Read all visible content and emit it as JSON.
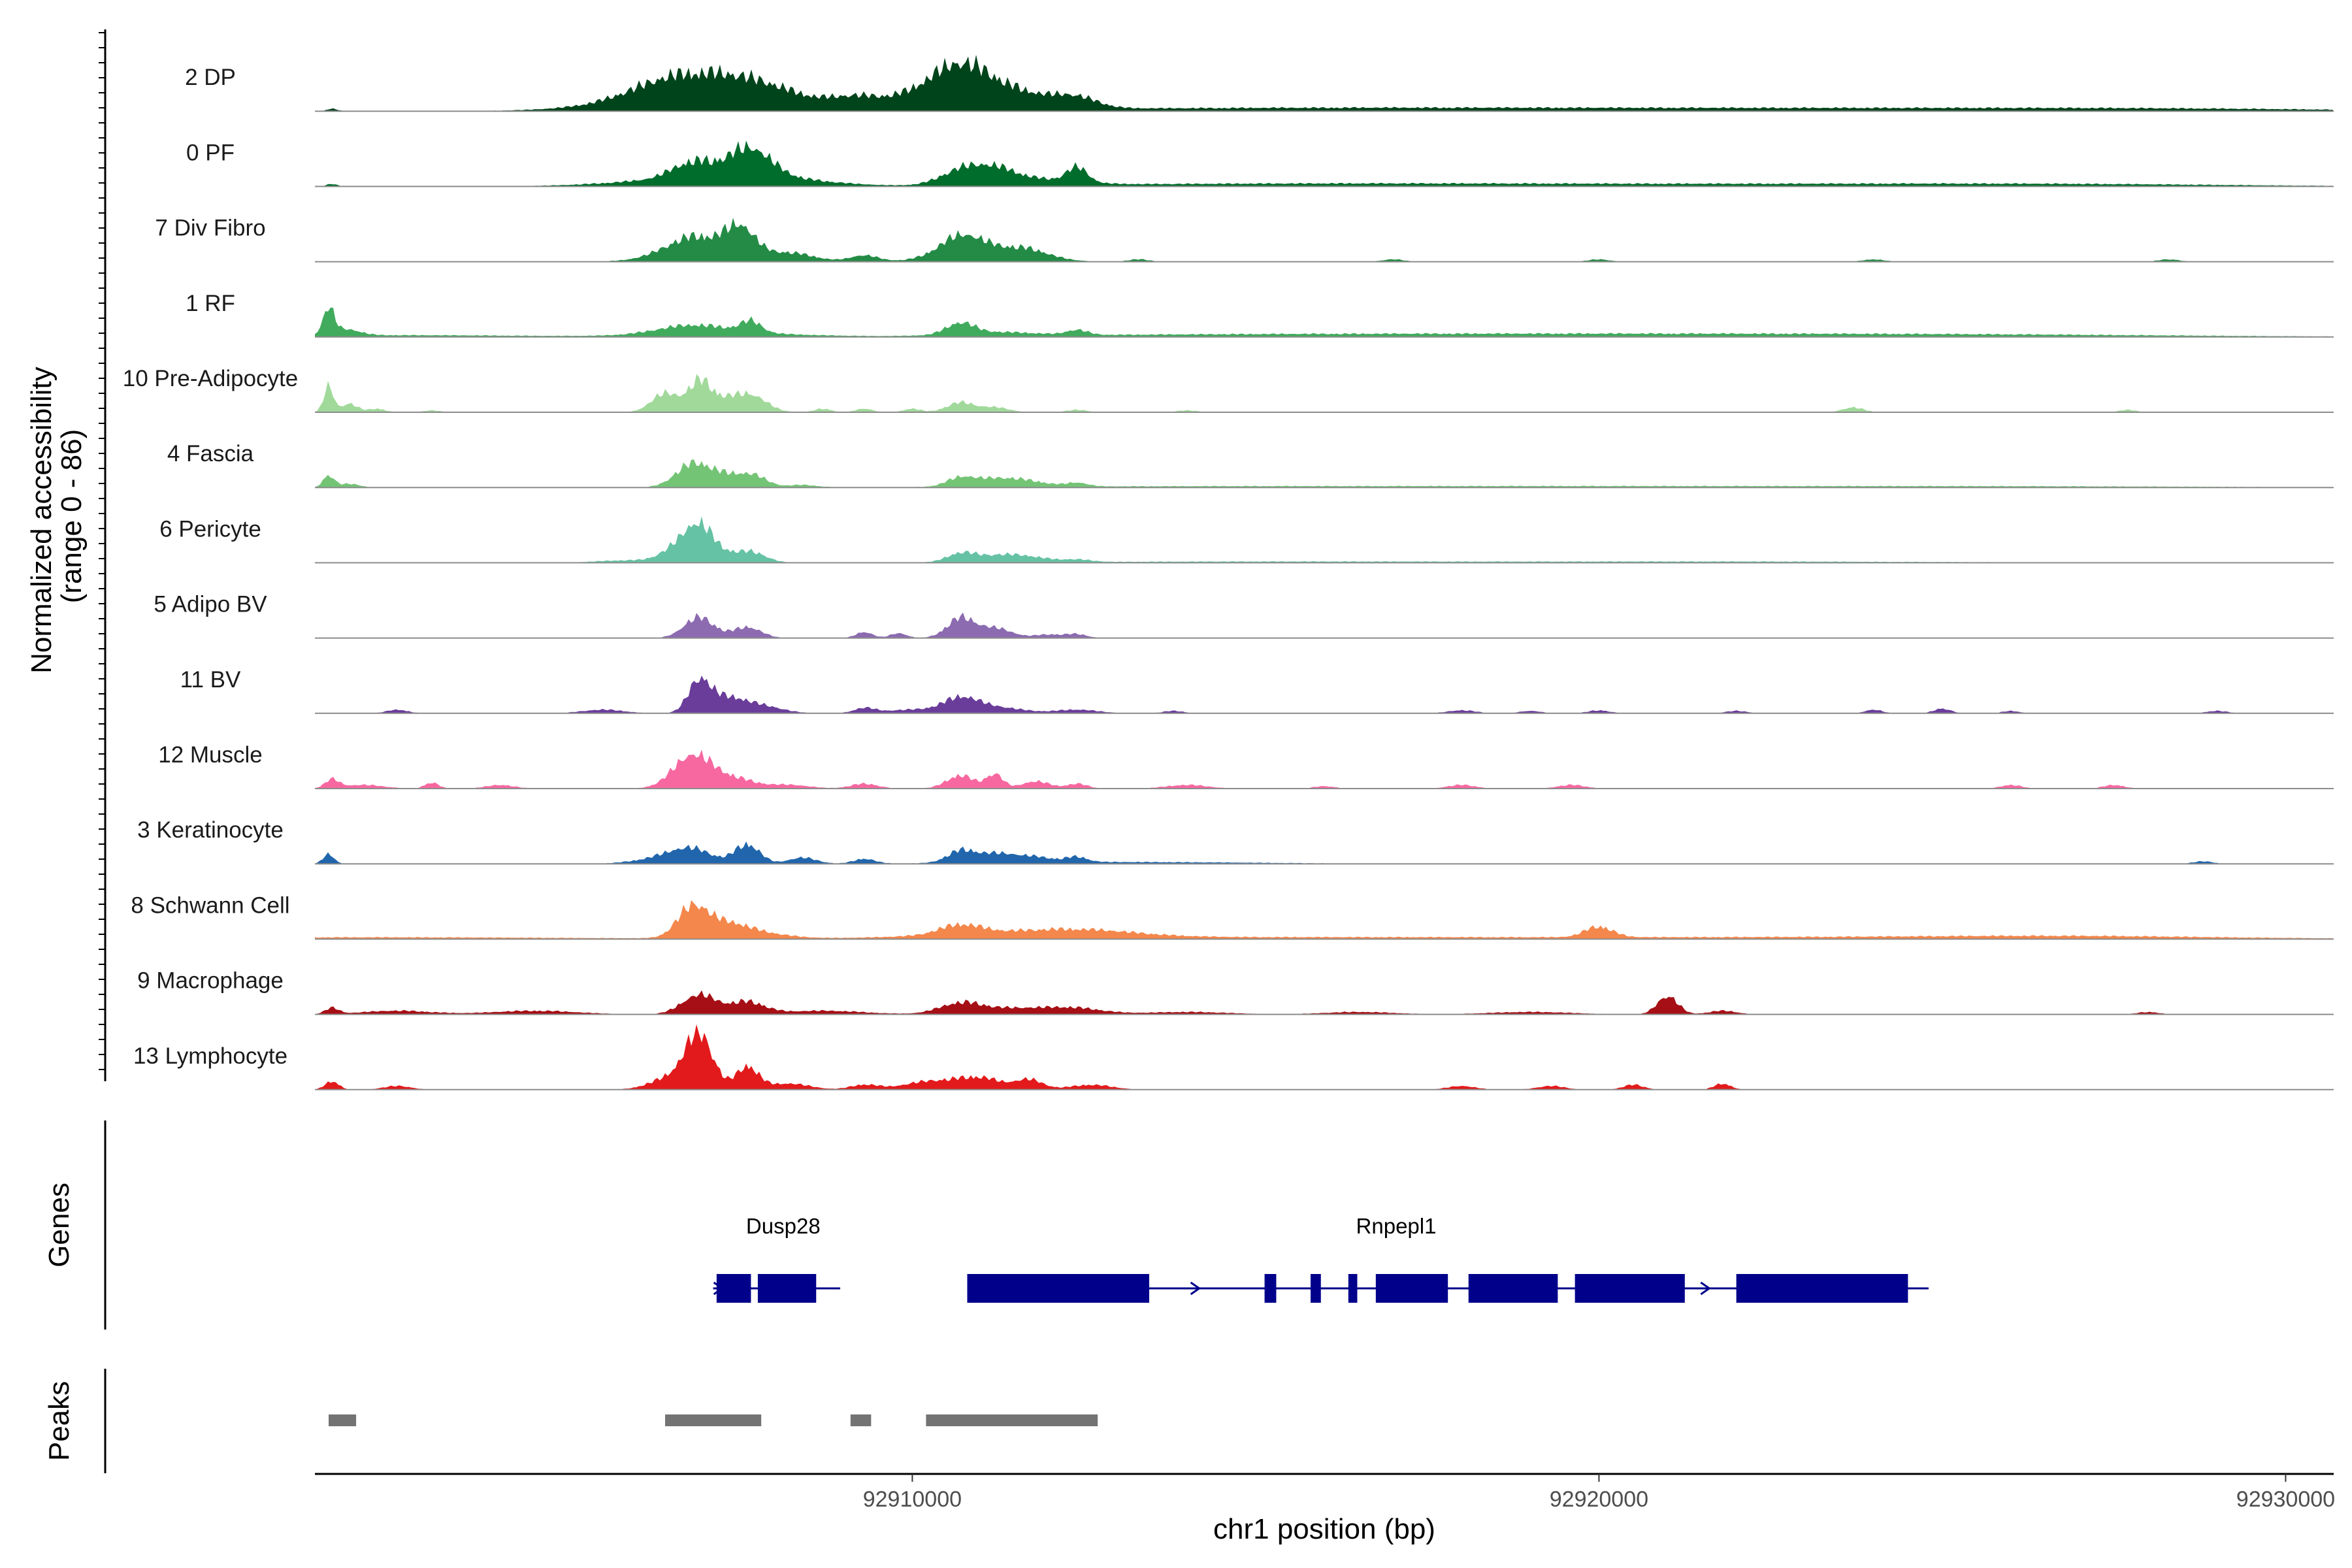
{
  "chart_data": {
    "type": "area",
    "title": "",
    "chromosome": "chr1",
    "xlabel": "chr1 position (bp)",
    "xlim": [
      92901300,
      92930700
    ],
    "x_ticks": [
      92910000,
      92920000,
      92930000
    ],
    "x_tick_labels": [
      "92910000",
      "92920000",
      "92930000"
    ],
    "coverage_ylabel_line1": "Normalized accessibility",
    "coverage_ylabel_line2": "(range 0 - 86)",
    "ylim": [
      0,
      86
    ],
    "genes_panel_label": "Genes",
    "peaks_panel_label": "Peaks",
    "series": [
      {
        "name": "2 DP",
        "color": "#00441b",
        "peaks": [
          [
            92901550,
            4,
            80
          ],
          [
            92906500,
            28,
            600
          ],
          [
            92906950,
            20,
            1100
          ],
          [
            92907600,
            24,
            600
          ],
          [
            92907650,
            10,
            1500
          ],
          [
            92909150,
            10,
            300
          ],
          [
            92910300,
            20,
            700
          ],
          [
            92910700,
            38,
            400
          ],
          [
            92911000,
            18,
            700
          ],
          [
            92911600,
            14,
            600
          ],
          [
            92912400,
            14,
            300
          ],
          [
            92913500,
            3,
            3000
          ],
          [
            92917000,
            3,
            3000
          ],
          [
            92921000,
            3,
            3000
          ],
          [
            92925000,
            3,
            3000
          ],
          [
            92928500,
            3,
            2500
          ]
        ]
      },
      {
        "name": "0 PF",
        "color": "#006d2c",
        "peaks": [
          [
            92901550,
            4,
            80
          ],
          [
            92906800,
            26,
            300
          ],
          [
            92907000,
            14,
            1100
          ],
          [
            92907500,
            20,
            300
          ],
          [
            92907700,
            30,
            300
          ],
          [
            92908200,
            6,
            600
          ],
          [
            92910700,
            22,
            300
          ],
          [
            92911200,
            20,
            300
          ],
          [
            92911700,
            10,
            600
          ],
          [
            92912400,
            24,
            150
          ],
          [
            92914000,
            3,
            3000
          ],
          [
            92918000,
            3,
            3000
          ],
          [
            92923000,
            3,
            3000
          ],
          [
            92927000,
            3,
            2500
          ]
        ]
      },
      {
        "name": "7 Div Fibro",
        "color": "#238b45",
        "peaks": [
          [
            92906800,
            28,
            400
          ],
          [
            92907500,
            38,
            200
          ],
          [
            92907300,
            18,
            700
          ],
          [
            92908300,
            8,
            300
          ],
          [
            92909300,
            10,
            200
          ],
          [
            92910700,
            28,
            300
          ],
          [
            92911100,
            20,
            600
          ],
          [
            92911700,
            10,
            300
          ],
          [
            92913300,
            4,
            150
          ],
          [
            92917000,
            4,
            150
          ],
          [
            92920000,
            4,
            150
          ],
          [
            92924000,
            4,
            150
          ],
          [
            92928300,
            4,
            150
          ]
        ]
      },
      {
        "name": "1 RF",
        "color": "#41ab5d",
        "peaks": [
          [
            92901500,
            42,
            80
          ],
          [
            92901750,
            10,
            200
          ],
          [
            92902500,
            3,
            2000
          ],
          [
            92906800,
            14,
            500
          ],
          [
            92907300,
            6,
            1000
          ],
          [
            92907650,
            18,
            150
          ],
          [
            92910700,
            18,
            200
          ],
          [
            92911200,
            6,
            600
          ],
          [
            92912400,
            8,
            150
          ],
          [
            92914000,
            3,
            3000
          ],
          [
            92918000,
            3,
            3000
          ],
          [
            92922000,
            3,
            3000
          ],
          [
            92926000,
            3,
            3000
          ]
        ]
      },
      {
        "name": "10 Pre-Adipocyte",
        "color": "#a1d99b",
        "peaks": [
          [
            92901500,
            42,
            70
          ],
          [
            92901800,
            14,
            120
          ],
          [
            92902200,
            6,
            120
          ],
          [
            92903000,
            3,
            120
          ],
          [
            92906400,
            30,
            200
          ],
          [
            92906900,
            40,
            160
          ],
          [
            92907300,
            24,
            350
          ],
          [
            92907700,
            16,
            200
          ],
          [
            92908700,
            6,
            120
          ],
          [
            92909300,
            6,
            120
          ],
          [
            92910000,
            6,
            120
          ],
          [
            92910700,
            16,
            200
          ],
          [
            92911200,
            8,
            200
          ],
          [
            92912400,
            4,
            150
          ],
          [
            92914000,
            3,
            150
          ],
          [
            92923700,
            8,
            150
          ],
          [
            92927700,
            4,
            120
          ]
        ]
      },
      {
        "name": "4 Fascia",
        "color": "#74c476",
        "peaks": [
          [
            92901500,
            20,
            80
          ],
          [
            92901800,
            6,
            150
          ],
          [
            92906800,
            36,
            250
          ],
          [
            92907300,
            18,
            300
          ],
          [
            92907700,
            14,
            200
          ],
          [
            92908400,
            4,
            200
          ],
          [
            92910700,
            14,
            200
          ],
          [
            92911200,
            12,
            300
          ],
          [
            92911700,
            8,
            300
          ],
          [
            92912400,
            6,
            150
          ],
          [
            92914000,
            2,
            3000
          ],
          [
            92920000,
            2,
            3000
          ],
          [
            92926000,
            2,
            3000
          ]
        ]
      },
      {
        "name": "6 Pericyte",
        "color": "#66c2a4",
        "peaks": [
          [
            92906900,
            48,
            200
          ],
          [
            92906600,
            24,
            250
          ],
          [
            92907300,
            14,
            300
          ],
          [
            92907700,
            12,
            200
          ],
          [
            92905800,
            4,
            400
          ],
          [
            92910700,
            14,
            200
          ],
          [
            92911200,
            10,
            300
          ],
          [
            92911700,
            8,
            300
          ],
          [
            92912400,
            4,
            200
          ],
          [
            92915000,
            2,
            3000
          ],
          [
            92922000,
            2,
            3000
          ]
        ]
      },
      {
        "name": "5 Adipo BV",
        "color": "#8c6bb1",
        "peaks": [
          [
            92906900,
            34,
            220
          ],
          [
            92907600,
            18,
            200
          ],
          [
            92909300,
            10,
            120
          ],
          [
            92909800,
            8,
            120
          ],
          [
            92910700,
            32,
            200
          ],
          [
            92911200,
            16,
            250
          ],
          [
            92912000,
            6,
            200
          ],
          [
            92912400,
            6,
            150
          ]
        ]
      },
      {
        "name": "11 BV",
        "color": "#6a3d9a",
        "peaks": [
          [
            92902500,
            6,
            150
          ],
          [
            92905500,
            6,
            300
          ],
          [
            92906900,
            52,
            160
          ],
          [
            92907300,
            24,
            250
          ],
          [
            92907800,
            12,
            300
          ],
          [
            92909300,
            8,
            150
          ],
          [
            92910000,
            6,
            400
          ],
          [
            92910700,
            22,
            250
          ],
          [
            92911200,
            10,
            400
          ],
          [
            92912400,
            6,
            300
          ],
          [
            92913800,
            4,
            150
          ],
          [
            92918000,
            5,
            200
          ],
          [
            92919000,
            4,
            150
          ],
          [
            92920000,
            5,
            150
          ],
          [
            92922000,
            4,
            150
          ],
          [
            92924000,
            6,
            120
          ],
          [
            92925000,
            8,
            120
          ],
          [
            92926000,
            4,
            120
          ],
          [
            92929000,
            4,
            150
          ]
        ]
      },
      {
        "name": "12 Muscle",
        "color": "#f768a1",
        "peaks": [
          [
            92901550,
            14,
            100
          ],
          [
            92902000,
            6,
            300
          ],
          [
            92903000,
            10,
            100
          ],
          [
            92904000,
            6,
            200
          ],
          [
            92906800,
            54,
            280
          ],
          [
            92907400,
            16,
            300
          ],
          [
            92908200,
            6,
            300
          ],
          [
            92909300,
            8,
            200
          ],
          [
            92910700,
            22,
            200
          ],
          [
            92911200,
            24,
            120
          ],
          [
            92911800,
            12,
            200
          ],
          [
            92912400,
            8,
            150
          ],
          [
            92914000,
            6,
            300
          ],
          [
            92916000,
            4,
            150
          ],
          [
            92918000,
            6,
            200
          ],
          [
            92919600,
            6,
            200
          ],
          [
            92926000,
            6,
            150
          ],
          [
            92927500,
            6,
            150
          ]
        ]
      },
      {
        "name": "3 Keratinocyte",
        "color": "#2166ac",
        "peaks": [
          [
            92901500,
            16,
            80
          ],
          [
            92906800,
            20,
            300
          ],
          [
            92907600,
            32,
            180
          ],
          [
            92906400,
            10,
            400
          ],
          [
            92908400,
            10,
            200
          ],
          [
            92909300,
            8,
            150
          ],
          [
            92910700,
            18,
            200
          ],
          [
            92911200,
            14,
            300
          ],
          [
            92911800,
            8,
            300
          ],
          [
            92912400,
            8,
            150
          ],
          [
            92913000,
            3,
            2000
          ],
          [
            92928800,
            4,
            150
          ]
        ]
      },
      {
        "name": "8 Schwann Cell",
        "color": "#f4874b",
        "peaks": [
          [
            92906800,
            50,
            220
          ],
          [
            92907300,
            22,
            300
          ],
          [
            92907800,
            8,
            400
          ],
          [
            92910700,
            16,
            300
          ],
          [
            92911500,
            8,
            1200
          ],
          [
            92912500,
            8,
            800
          ],
          [
            92920000,
            18,
            200
          ],
          [
            92902000,
            3,
            3000
          ],
          [
            92915000,
            3,
            4000
          ],
          [
            92924000,
            3,
            4000
          ],
          [
            92927000,
            3,
            2000
          ]
        ]
      },
      {
        "name": "9 Macrophage",
        "color": "#a50f15",
        "peaks": [
          [
            92901550,
            10,
            100
          ],
          [
            92902500,
            6,
            500
          ],
          [
            92904500,
            6,
            600
          ],
          [
            92906900,
            32,
            250
          ],
          [
            92907600,
            20,
            250
          ],
          [
            92908700,
            6,
            600
          ],
          [
            92910700,
            16,
            300
          ],
          [
            92911500,
            10,
            600
          ],
          [
            92912400,
            8,
            400
          ],
          [
            92914000,
            4,
            600
          ],
          [
            92916500,
            4,
            500
          ],
          [
            92919000,
            4,
            600
          ],
          [
            92921000,
            30,
            150
          ],
          [
            92921800,
            6,
            200
          ],
          [
            92928000,
            4,
            150
          ]
        ]
      },
      {
        "name": "13 Lymphocyte",
        "color": "#e31a1c",
        "peaks": [
          [
            92901550,
            14,
            100
          ],
          [
            92902500,
            6,
            200
          ],
          [
            92906900,
            86,
            200
          ],
          [
            92906500,
            20,
            300
          ],
          [
            92907600,
            38,
            160
          ],
          [
            92908200,
            10,
            300
          ],
          [
            92909300,
            8,
            200
          ],
          [
            92910300,
            14,
            400
          ],
          [
            92911000,
            18,
            300
          ],
          [
            92911700,
            16,
            200
          ],
          [
            92912600,
            8,
            300
          ],
          [
            92918000,
            6,
            200
          ],
          [
            92919300,
            6,
            200
          ],
          [
            92920500,
            8,
            150
          ],
          [
            92921800,
            10,
            120
          ]
        ]
      }
    ],
    "genes": [
      {
        "name": "Dusp28",
        "strand": "+",
        "start": 92907100,
        "end": 92908950,
        "exons": [
          [
            92907150,
            92907650
          ],
          [
            92907750,
            92908600
          ]
        ]
      },
      {
        "name": "Rnpepl1",
        "strand": "+",
        "start": 92910800,
        "end": 92924800,
        "exons": [
          [
            92910800,
            92913450
          ],
          [
            92915130,
            92915300
          ],
          [
            92915800,
            92915950
          ],
          [
            92916350,
            92916480
          ],
          [
            92916750,
            92917800
          ],
          [
            92918100,
            92919400
          ],
          [
            92919650,
            92921250
          ],
          [
            92922000,
            92924500
          ]
        ]
      }
    ],
    "peak_regions": [
      [
        92901500,
        92901900
      ],
      [
        92906400,
        92907800
      ],
      [
        92909100,
        92909400
      ],
      [
        92910200,
        92912700
      ]
    ]
  }
}
